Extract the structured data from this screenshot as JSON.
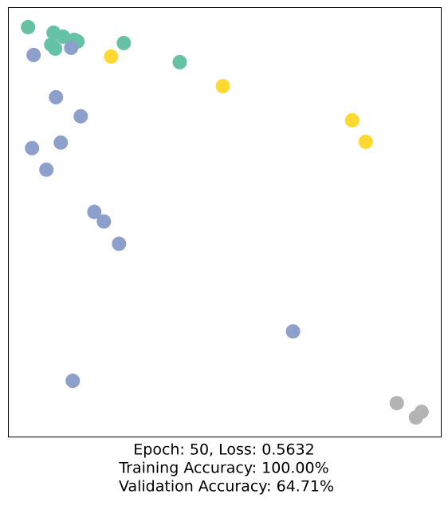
{
  "chart_data": {
    "type": "scatter",
    "caption": [
      "Epoch: 50, Loss: 0.5632",
      "Training Accuracy: 100.00%",
      "Validation Accuracy: 64.71%"
    ],
    "series": [
      {
        "color": "#66c2a5",
        "x": [
          25,
          57,
          69,
          54,
          59,
          83,
          87,
          145,
          215
        ],
        "y": [
          514,
          507,
          502,
          492,
          487,
          498,
          496,
          494,
          470
        ]
      },
      {
        "color": "#8da0cb",
        "x": [
          32,
          79,
          60,
          91,
          30,
          66,
          48,
          108,
          120,
          139,
          357,
          81
        ],
        "y": [
          479,
          488,
          426,
          402,
          362,
          369,
          335,
          282,
          270,
          242,
          132,
          70
        ]
      },
      {
        "color": "#ffd92f",
        "x": [
          129,
          269,
          431,
          448
        ],
        "y": [
          477,
          440,
          397,
          370
        ]
      },
      {
        "color": "#b3b3b3",
        "x": [
          487,
          518,
          511
        ],
        "y": [
          42,
          31,
          24
        ]
      }
    ]
  }
}
